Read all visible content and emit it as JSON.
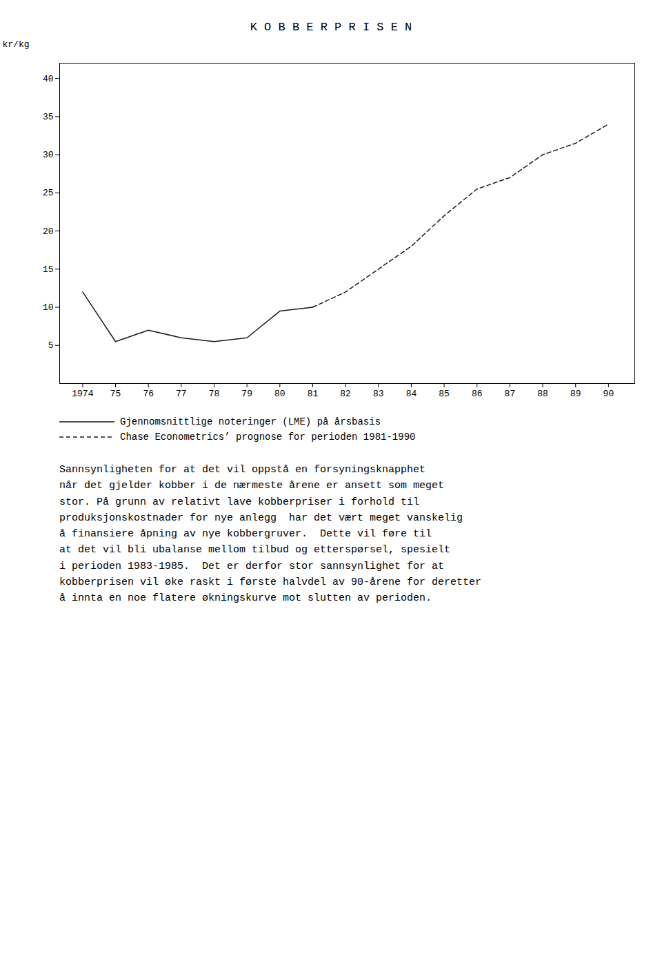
{
  "chart_data": {
    "type": "line",
    "title": "K O B B E R P R I S E N",
    "ylabel": "kr/kg",
    "xlim": [
      1973.3,
      1990.8
    ],
    "ylim": [
      0,
      42
    ],
    "xticks": [
      1974,
      {
        "value": 1975,
        "label": "75"
      },
      {
        "value": 1976,
        "label": "76"
      },
      {
        "value": 1977,
        "label": "77"
      },
      {
        "value": 1978,
        "label": "78"
      },
      {
        "value": 1979,
        "label": "79"
      },
      {
        "value": 1980,
        "label": "80"
      },
      {
        "value": 1981,
        "label": "81"
      },
      {
        "value": 1982,
        "label": "82"
      },
      {
        "value": 1983,
        "label": "83"
      },
      {
        "value": 1984,
        "label": "84"
      },
      {
        "value": 1985,
        "label": "85"
      },
      {
        "value": 1986,
        "label": "86"
      },
      {
        "value": 1987,
        "label": "87"
      },
      {
        "value": 1988,
        "label": "88"
      },
      {
        "value": 1989,
        "label": "89"
      },
      {
        "value": 1990,
        "label": "90"
      }
    ],
    "yticks": [
      5,
      10,
      15,
      20,
      25,
      30,
      35,
      40
    ],
    "grid": false,
    "legend": "bottom",
    "series": [
      {
        "name": "Gjennomsnittlige noteringer (LME) på årsbasis",
        "color": "#1a1a1a",
        "line_style": "solid",
        "x": [
          1974,
          1975,
          1976,
          1977,
          1978,
          1979,
          1980,
          1981
        ],
        "values": [
          12.0,
          5.5,
          7.0,
          6.0,
          5.5,
          6.0,
          9.5,
          10.0
        ]
      },
      {
        "name": "Chase Econometrics’ prognose for perioden 1981-1990",
        "color": "#1a1a1a",
        "line_style": "dashed",
        "x": [
          1981,
          1982,
          1983,
          1984,
          1985,
          1986,
          1987,
          1988,
          1989,
          1990
        ],
        "values": [
          10.0,
          12.0,
          15.0,
          18.0,
          22.0,
          25.5,
          27.0,
          30.0,
          31.5,
          34.0
        ]
      }
    ],
    "caption": "Sannsynligheten for at det vil oppstå en forsyningsknapphet\nnår det gjelder kobber i de nærmeste årene er ansett som meget\nstor. På grunn av relativt lave kobberpriser i forhold til\nproduksjonskostnader for nye anlegg  har det vært meget vanskelig\nå finansiere åpning av nye kobbergruver.  Dette vil føre til\nat det vil bli ubalanse mellom tilbud og etterspørsel, spesielt\ni perioden 1983-1985.  Det er derfor stor sannsynlighet for at\nkobberprisen vil øke raskt i første halvdel av 90-årene for deretter\nå innta en noe flatere økningskurve mot slutten av perioden."
  }
}
